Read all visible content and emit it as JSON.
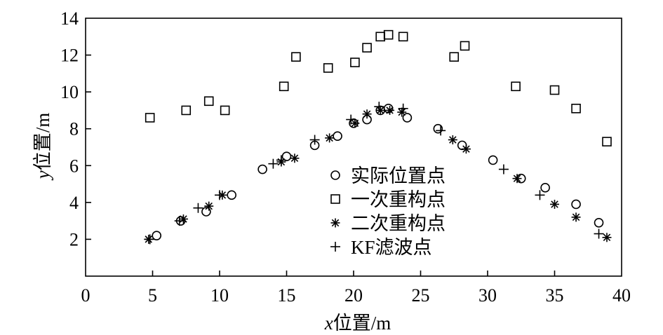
{
  "chart_data": {
    "type": "scatter",
    "xlabel_var": "x",
    "xlabel_text": "位置/m",
    "ylabel_var": "y",
    "ylabel_text": "位置/m",
    "xlim": [
      0,
      40
    ],
    "ylim": [
      0,
      14
    ],
    "xticks": [
      "0",
      "5",
      "10",
      "15",
      "20",
      "25",
      "30",
      "35",
      "40"
    ],
    "yticks": [
      "2",
      "4",
      "6",
      "8",
      "10",
      "12",
      "14"
    ],
    "grid": false,
    "legend_position": "center-right",
    "series": [
      {
        "name": "实际位置点",
        "marker": "circle",
        "points": [
          [
            5.3,
            2.2
          ],
          [
            7.1,
            3.0
          ],
          [
            9.0,
            3.5
          ],
          [
            10.9,
            4.4
          ],
          [
            13.2,
            5.8
          ],
          [
            15.0,
            6.5
          ],
          [
            17.1,
            7.1
          ],
          [
            18.8,
            7.6
          ],
          [
            20.0,
            8.3
          ],
          [
            21.0,
            8.5
          ],
          [
            22.0,
            9.0
          ],
          [
            22.6,
            9.1
          ],
          [
            24.0,
            8.6
          ],
          [
            26.3,
            8.0
          ],
          [
            28.1,
            7.1
          ],
          [
            30.4,
            6.3
          ],
          [
            32.5,
            5.3
          ],
          [
            34.3,
            4.8
          ],
          [
            36.6,
            3.9
          ],
          [
            38.3,
            2.9
          ]
        ]
      },
      {
        "name": "一次重构点",
        "marker": "square",
        "points": [
          [
            4.8,
            8.6
          ],
          [
            7.5,
            9.0
          ],
          [
            9.2,
            9.5
          ],
          [
            10.4,
            9.0
          ],
          [
            14.8,
            10.3
          ],
          [
            15.7,
            11.9
          ],
          [
            18.1,
            11.3
          ],
          [
            20.1,
            11.6
          ],
          [
            21.0,
            12.4
          ],
          [
            22.0,
            13.0
          ],
          [
            22.6,
            13.1
          ],
          [
            23.7,
            13.0
          ],
          [
            27.5,
            11.9
          ],
          [
            28.3,
            12.5
          ],
          [
            32.1,
            10.3
          ],
          [
            35.0,
            10.1
          ],
          [
            36.6,
            9.1
          ],
          [
            38.9,
            7.3
          ]
        ]
      },
      {
        "name": "二次重构点",
        "marker": "asterisk",
        "points": [
          [
            4.7,
            2.0
          ],
          [
            7.3,
            3.1
          ],
          [
            9.2,
            3.8
          ],
          [
            10.2,
            4.4
          ],
          [
            14.6,
            6.2
          ],
          [
            15.6,
            6.4
          ],
          [
            18.2,
            7.5
          ],
          [
            20.1,
            8.3
          ],
          [
            21.0,
            8.8
          ],
          [
            22.0,
            9.0
          ],
          [
            22.7,
            9.0
          ],
          [
            23.6,
            8.9
          ],
          [
            27.4,
            7.4
          ],
          [
            28.4,
            6.9
          ],
          [
            32.2,
            5.3
          ],
          [
            35.0,
            3.9
          ],
          [
            36.6,
            3.2
          ],
          [
            38.9,
            2.1
          ]
        ]
      },
      {
        "name": "KF滤波点",
        "marker": "plus",
        "points": [
          [
            4.8,
            2.0
          ],
          [
            7.0,
            3.0
          ],
          [
            8.4,
            3.7
          ],
          [
            10.0,
            4.4
          ],
          [
            14.0,
            6.1
          ],
          [
            14.6,
            6.3
          ],
          [
            17.1,
            7.4
          ],
          [
            19.8,
            8.5
          ],
          [
            21.9,
            9.2
          ],
          [
            23.7,
            9.1
          ],
          [
            26.5,
            7.9
          ],
          [
            31.2,
            5.8
          ],
          [
            33.9,
            4.4
          ],
          [
            38.3,
            2.3
          ]
        ]
      }
    ]
  }
}
